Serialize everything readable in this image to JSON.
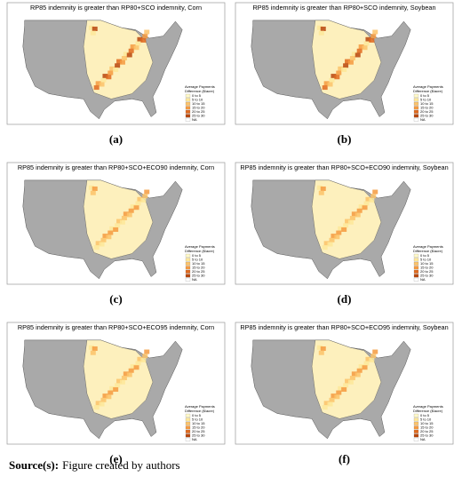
{
  "panels": [
    {
      "title": "RP85 indemnity is greater than RP80+SCO indemnity, Corn",
      "label": "(a)"
    },
    {
      "title": "RP85 indemnity is greater than RP80+SCO indemnity, Soybean",
      "label": "(b)"
    },
    {
      "title": "RP85 indemnity is greater than RP80+SCO+ECO90 indemnity, Corn",
      "label": "(c)"
    },
    {
      "title": "RP85 indemnity is greater than RP80+SCO+ECO90 indemnity, Soybean",
      "label": "(d)"
    },
    {
      "title": "RP85 indemnity is greater than RP80+SCO+ECO95 indemnity, Corn",
      "label": "(e)"
    },
    {
      "title": "RP85 indemnity is greater than RP80+SCO+ECO95 indemnity, Soybean",
      "label": "(f)"
    }
  ],
  "legend": {
    "title": [
      "Average Payments",
      "Difference ($/acre)"
    ],
    "items": [
      {
        "label": "0 to 5",
        "color": "#fff9c8"
      },
      {
        "label": "5 to 10",
        "color": "#fde79a"
      },
      {
        "label": "10 to 15",
        "color": "#fcc36a"
      },
      {
        "label": "15 to 20",
        "color": "#f59a3f"
      },
      {
        "label": "20 to 25",
        "color": "#e06a1e"
      },
      {
        "label": "25 to 30",
        "color": "#b8470e"
      },
      {
        "label": "NA",
        "color": "#ffffff"
      }
    ]
  },
  "source": {
    "label": "Source(s):",
    "text": "Figure created by authors"
  }
}
